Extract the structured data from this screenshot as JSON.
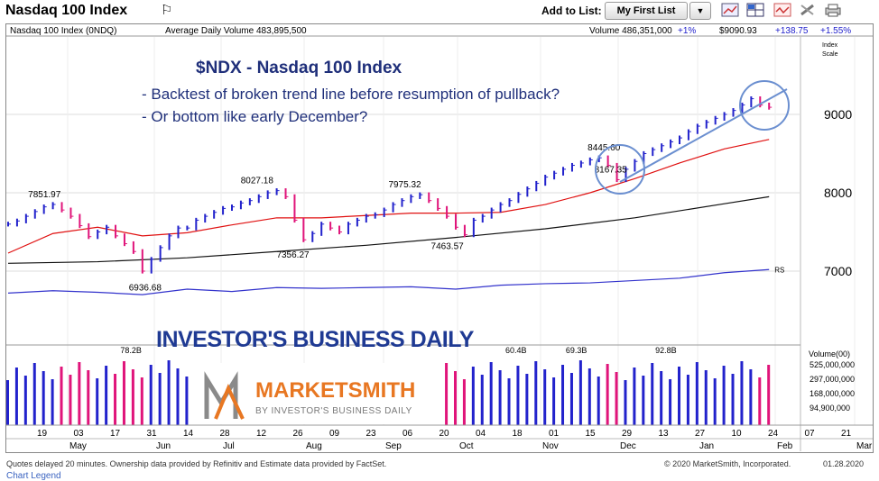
{
  "header": {
    "title": "Nasdaq 100 Index",
    "add_to_list_label": "Add to List:",
    "list_value": "My First List",
    "icons": [
      "line-chart-icon",
      "grid-icon",
      "alert-icon",
      "tools-icon",
      "print-icon"
    ]
  },
  "info_bar": {
    "symbol": "Nasdaq 100 Index   (0NDQ)",
    "avg_volume": "Average Daily Volume 483,895,500",
    "volume": "Volume 486,351,000",
    "volume_change": "+1%",
    "price": "$9090.93",
    "price_change": "+138.75",
    "pct_change": "+1.55%"
  },
  "annotation": {
    "title": "$NDX - Nasdaq 100 Index",
    "line1": "- Backtest of broken trend line before resumption of pullback?",
    "line2": "- Or bottom like early December?"
  },
  "colors": {
    "up_bar": "#2222cc",
    "down_bar": "#e0147a",
    "ma_short": "#e01010",
    "ma_long": "#111111",
    "rs_line": "#3333cc",
    "annotation_text": "#1f2f7a",
    "trend_line": "#6b8fd0",
    "ibd_blue": "#1f3a93",
    "marketsmith_orange": "#e87722"
  },
  "logos": {
    "ibd": "INVESTOR'S BUSINESS DAILY",
    "marketsmith": "MARKETSMITH",
    "marketsmith_sub": "BY INVESTOR'S BUSINESS DAILY"
  },
  "footer": {
    "left": "Quotes delayed 20 minutes. Ownership data provided by Refinitiv and Estimate data provided by FactSet.",
    "center": "© 2020 MarketSmith, Incorporated.",
    "date": "01.28.2020",
    "legend": "Chart Legend"
  },
  "chart_data": {
    "type": "line",
    "title": "$NDX - Nasdaq 100 Index",
    "price_axis": {
      "label_top": "Index",
      "label_bottom": "Scale",
      "ticks": [
        7000,
        8000,
        9000
      ],
      "tick_labels": [
        "7000",
        "8000",
        "9000"
      ],
      "ylim": [
        6580,
        9600
      ]
    },
    "x_day_labels": [
      "19",
      "03",
      "17",
      "31",
      "14",
      "28",
      "12",
      "26",
      "09",
      "23",
      "06",
      "20",
      "04",
      "18",
      "01",
      "15",
      "29",
      "13",
      "27",
      "10",
      "24",
      "07",
      "21",
      "06"
    ],
    "x_month_labels": [
      "May",
      "Jun",
      "Jul",
      "Aug",
      "Sep",
      "Oct",
      "Nov",
      "Dec",
      "Jan",
      "Feb",
      "Mar"
    ],
    "price_labels": [
      {
        "text": "7851.97",
        "x": 17,
        "y": 7852
      },
      {
        "text": "6936.68",
        "x": 62,
        "y": 6937
      },
      {
        "text": "8027.18",
        "x": 112,
        "y": 8027
      },
      {
        "text": "7356.27",
        "x": 128,
        "y": 7356
      },
      {
        "text": "7975.32",
        "x": 178,
        "y": 7975
      },
      {
        "text": "7463.57",
        "x": 197,
        "y": 7464
      },
      {
        "text": "8445.60",
        "x": 267,
        "y": 8446
      },
      {
        "text": "8167.35",
        "x": 270,
        "y": 8167
      }
    ],
    "volume_axis": {
      "label": "Volume(00)",
      "ticks": [
        "525,000,000",
        "297,000,000",
        "168,000,000",
        "94,900,000"
      ]
    },
    "volume_labels": [
      {
        "text": "78.2B",
        "x": 55
      },
      {
        "text": "60.4B",
        "x": 227
      },
      {
        "text": "69.3B",
        "x": 254
      },
      {
        "text": "92.8B",
        "x": 294
      }
    ],
    "rs_label": "RS",
    "series": [
      {
        "name": "NDX",
        "kind": "ohlc",
        "x": [
          0,
          4,
          8,
          12,
          16,
          20,
          24,
          28,
          32,
          36,
          40,
          44,
          48,
          52,
          56,
          60,
          64,
          68,
          72,
          76,
          80,
          84,
          88,
          92,
          96,
          100,
          104,
          108,
          112,
          116,
          120,
          124,
          128,
          132,
          136,
          140,
          144,
          148,
          152,
          156,
          160,
          164,
          168,
          172,
          176,
          180,
          184,
          188,
          192,
          196,
          200,
          204,
          208,
          212,
          216,
          220,
          224,
          228,
          232,
          236,
          240,
          244,
          248,
          252,
          256,
          260,
          264,
          268,
          272,
          276,
          280,
          284,
          288,
          292,
          296,
          300,
          304,
          308,
          312,
          316,
          320,
          324,
          328,
          332,
          336,
          340
        ],
        "y": [
          7600,
          7640,
          7700,
          7760,
          7820,
          7851,
          7780,
          7700,
          7580,
          7440,
          7500,
          7560,
          7450,
          7350,
          7250,
          7000,
          7150,
          7300,
          7450,
          7550,
          7550,
          7650,
          7700,
          7750,
          7800,
          7820,
          7870,
          7900,
          7950,
          8000,
          8027,
          7950,
          7650,
          7400,
          7480,
          7600,
          7550,
          7500,
          7600,
          7650,
          7700,
          7720,
          7780,
          7850,
          7900,
          7950,
          7975,
          7900,
          7800,
          7700,
          7560,
          7464,
          7650,
          7700,
          7780,
          7850,
          7900,
          7980,
          8050,
          8120,
          8200,
          8250,
          8300,
          8350,
          8380,
          8420,
          8446,
          8350,
          8167,
          8300,
          8400,
          8500,
          8550,
          8600,
          8650,
          8700,
          8780,
          8850,
          8900,
          8950,
          9000,
          9050,
          9120,
          9200,
          9120,
          9091
        ]
      },
      {
        "name": "50-day MA",
        "kind": "line",
        "x": [
          0,
          20,
          40,
          60,
          80,
          100,
          120,
          140,
          160,
          180,
          200,
          220,
          240,
          260,
          280,
          300,
          320,
          340
        ],
        "y": [
          7230,
          7480,
          7560,
          7450,
          7490,
          7590,
          7680,
          7680,
          7710,
          7740,
          7740,
          7750,
          7850,
          8000,
          8180,
          8380,
          8560,
          8680
        ]
      },
      {
        "name": "200-day MA",
        "kind": "line",
        "x": [
          0,
          40,
          80,
          120,
          160,
          200,
          240,
          280,
          320,
          340
        ],
        "y": [
          7100,
          7120,
          7170,
          7250,
          7330,
          7430,
          7540,
          7680,
          7860,
          7950
        ]
      },
      {
        "name": "RS",
        "kind": "line",
        "x": [
          0,
          20,
          40,
          60,
          80,
          100,
          120,
          140,
          160,
          180,
          200,
          220,
          240,
          260,
          280,
          300,
          320,
          340
        ],
        "y": [
          6720,
          6750,
          6730,
          6700,
          6770,
          6740,
          6790,
          6780,
          6790,
          6800,
          6770,
          6820,
          6840,
          6850,
          6880,
          6910,
          6980,
          7020
        ]
      }
    ]
  }
}
